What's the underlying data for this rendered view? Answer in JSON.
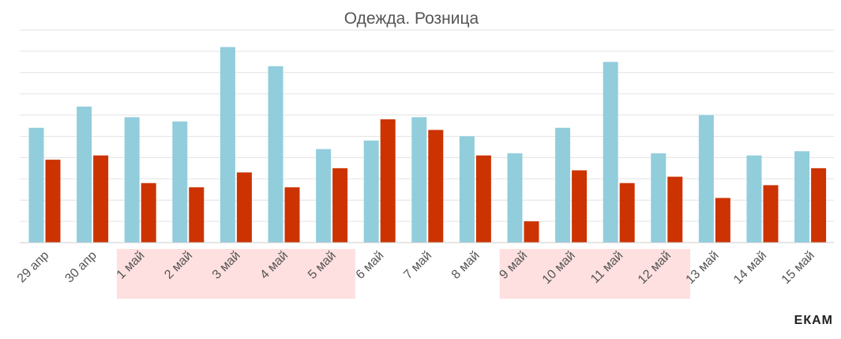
{
  "chart_data": {
    "type": "bar",
    "title": "Одежда. Розница",
    "categories": [
      "29 апр",
      "30 апр",
      "1 май",
      "2 май",
      "3 май",
      "4 май",
      "5 май",
      "6 май",
      "7 май",
      "8 май",
      "9 май",
      "10 май",
      "11 май",
      "12 май",
      "13 май",
      "14 май",
      "15 май"
    ],
    "series": [
      {
        "values": [
          5.4,
          6.4,
          5.9,
          5.7,
          9.2,
          8.3,
          4.4,
          4.8,
          5.9,
          5.0,
          4.2,
          5.4,
          8.5,
          4.2,
          6.0,
          4.1,
          4.3
        ],
        "color": "#92cddc"
      },
      {
        "values": [
          3.9,
          4.1,
          2.8,
          2.6,
          3.3,
          2.6,
          3.5,
          5.8,
          5.3,
          4.1,
          1.0,
          3.4,
          2.8,
          3.1,
          2.1,
          2.7,
          3.5
        ],
        "color": "#cc3300"
      }
    ],
    "ylim": [
      0,
      10
    ],
    "grid": true,
    "highlighted_ranges": [
      [
        "1 май",
        "5 май"
      ],
      [
        "9 май",
        "12 май"
      ]
    ],
    "highlight_color": "#fde0df"
  },
  "logo": {
    "text": "ЕКАМ"
  }
}
